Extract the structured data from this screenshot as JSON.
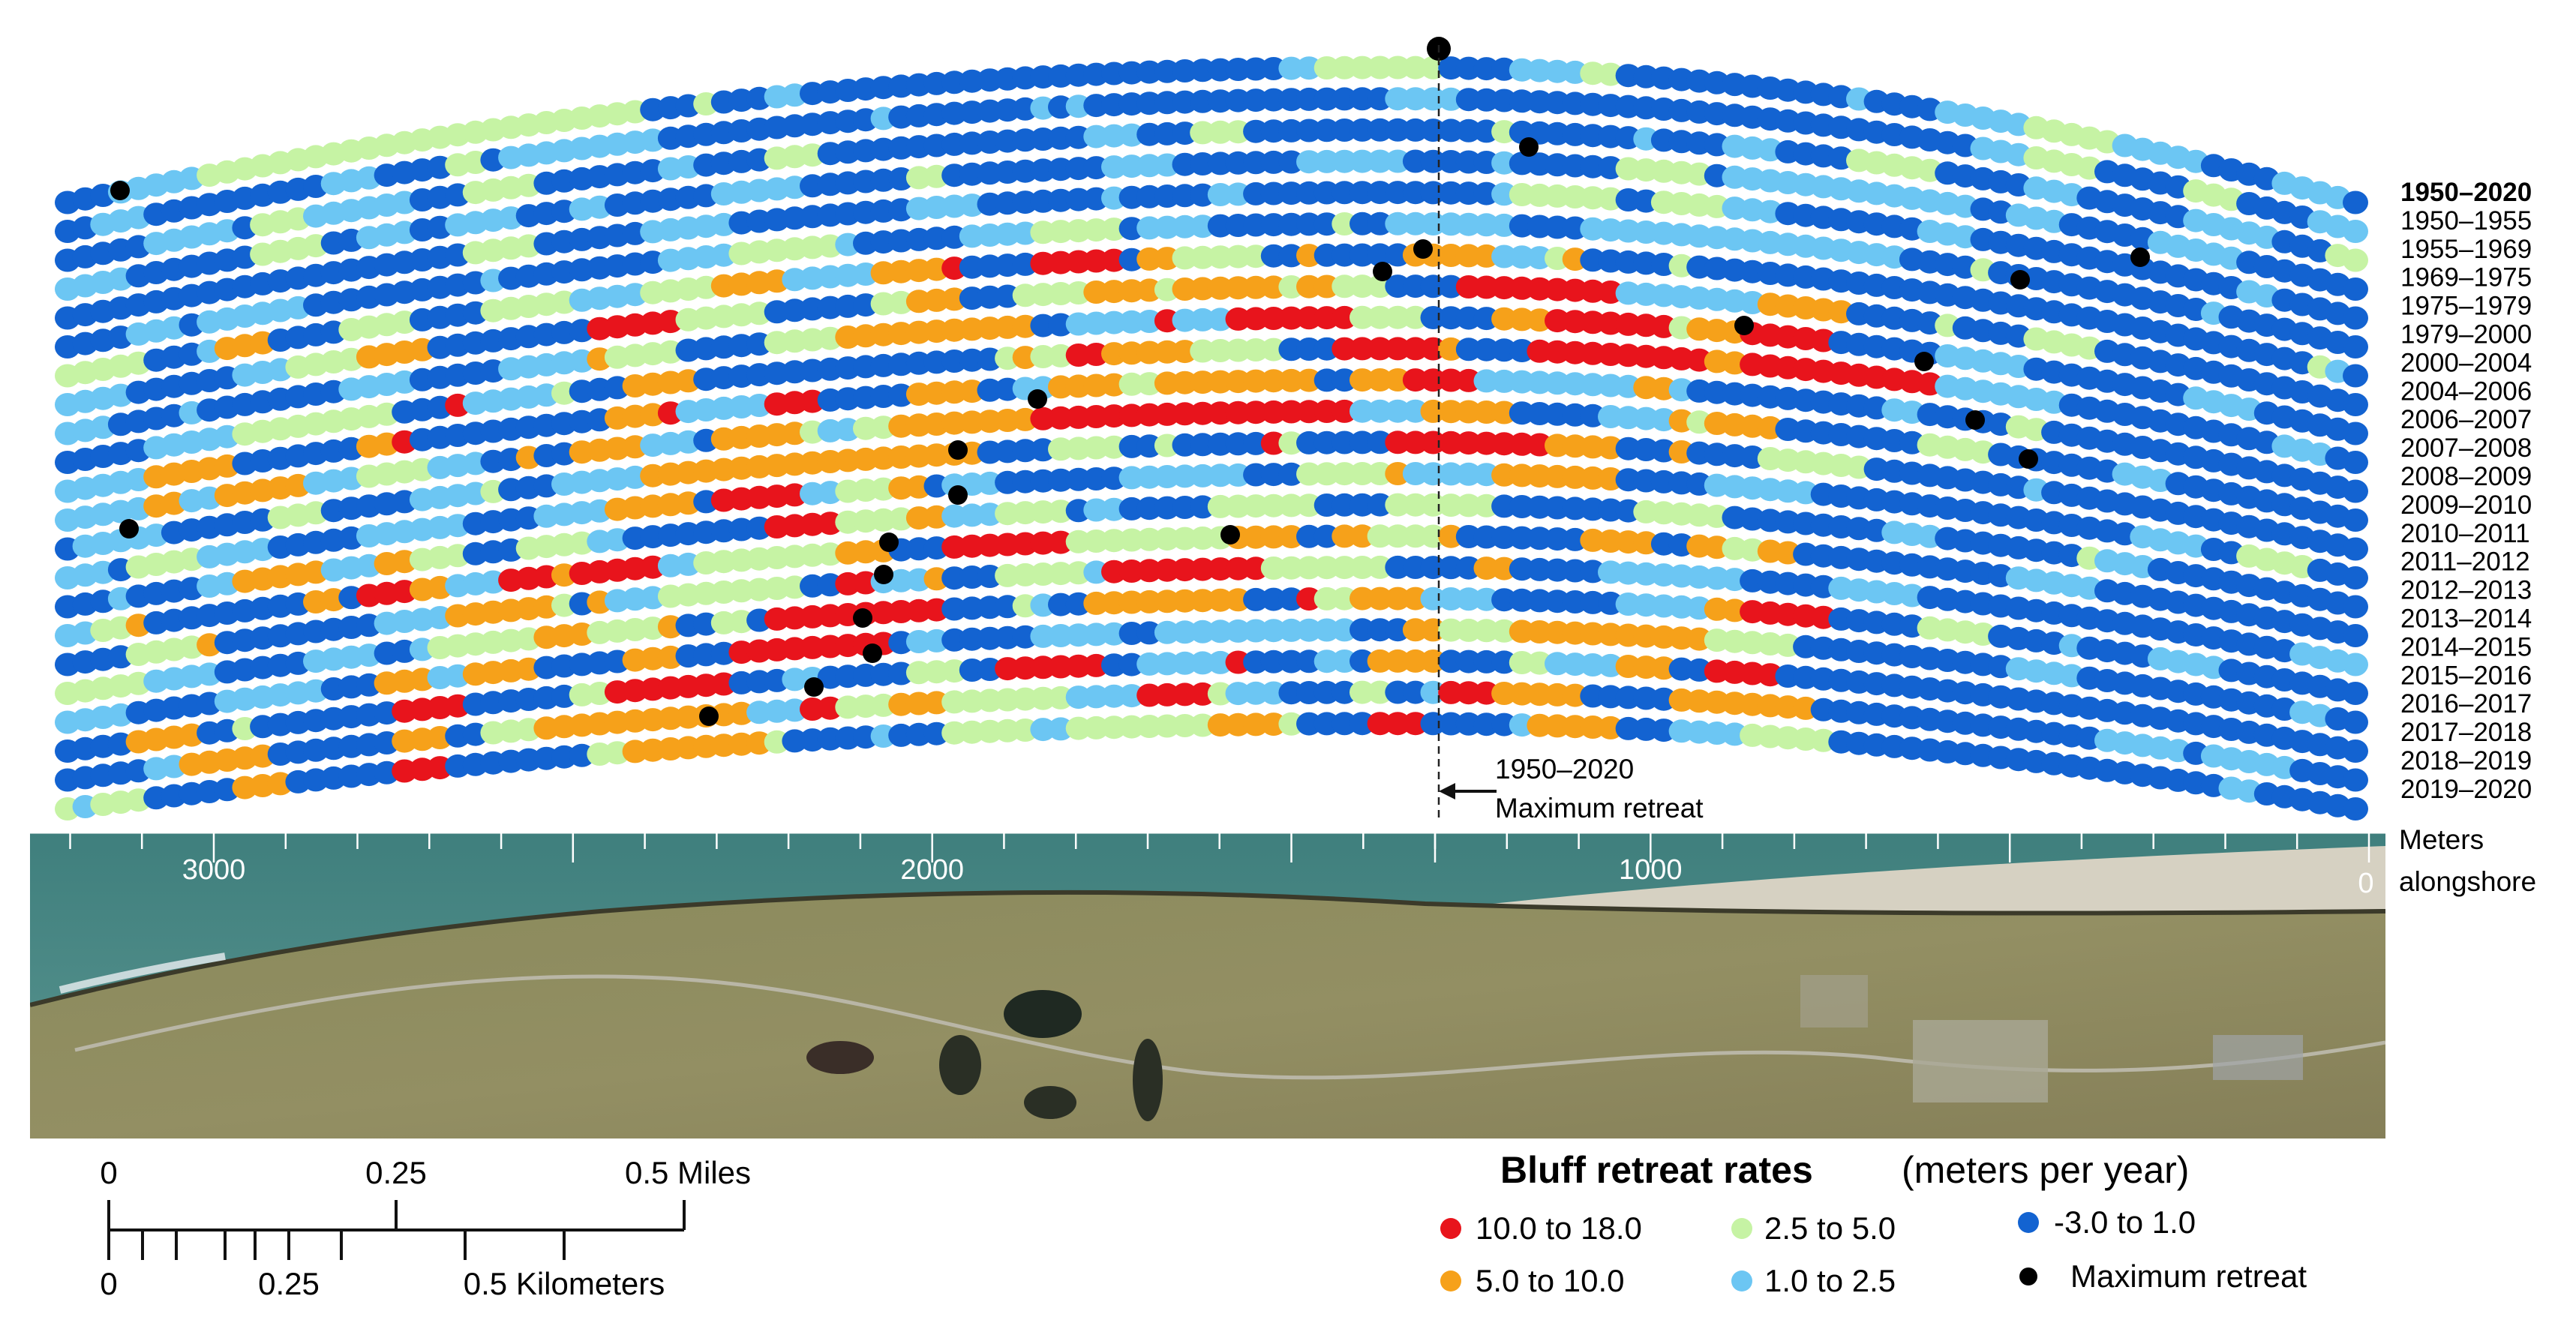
{
  "periods": [
    "1950–2020",
    "1950–1955",
    "1955–1969",
    "1969–1975",
    "1975–1979",
    "1979–2000",
    "2000–2004",
    "2004–2006",
    "2006–2007",
    "2007–2008",
    "2008–2009",
    "2009–2010",
    "2010–2011",
    "2011–2012",
    "2012–2013",
    "2013–2014",
    "2014–2015",
    "2015–2016",
    "2016–2017",
    "2017–2018",
    "2018–2019",
    "2019–2020"
  ],
  "highlighted_period": "1950–2020",
  "annotation": {
    "line1": "1950–2020",
    "line2": "Maximum retreat"
  },
  "axis": {
    "unit_line1": "Meters",
    "unit_line2": "alongshore",
    "ticks": [
      {
        "label": "3000",
        "value": 3000
      },
      {
        "label": "2000",
        "value": 2000
      },
      {
        "label": "1000",
        "value": 1000
      },
      {
        "label": "0",
        "value": 0
      }
    ],
    "max_retreat_position_m": 1300
  },
  "scale_bar": {
    "miles_labels": [
      "0",
      "0.25",
      "0.5 Miles"
    ],
    "km_labels": [
      "0",
      "0.25",
      "0.5 Kilometers"
    ]
  },
  "legend": {
    "title": "Bluff retreat rates",
    "units": "(meters per year)",
    "classes": [
      {
        "label": "10.0 to 18.0",
        "color": "#e8141c"
      },
      {
        "label": "5.0 to 10.0",
        "color": "#f6a11a"
      },
      {
        "label": "2.5 to 5.0",
        "color": "#c6f3a4"
      },
      {
        "label": "1.0 to 2.5",
        "color": "#6cc6f3"
      },
      {
        "label": "-3.0 to 1.0",
        "color": "#1363d1"
      },
      {
        "label": "Maximum retreat",
        "color": "#000000"
      }
    ]
  },
  "imagery_colors": {
    "ocean": "#4f8a86",
    "tundra": "#8e8a5e",
    "beach": "#d9d4c6"
  }
}
